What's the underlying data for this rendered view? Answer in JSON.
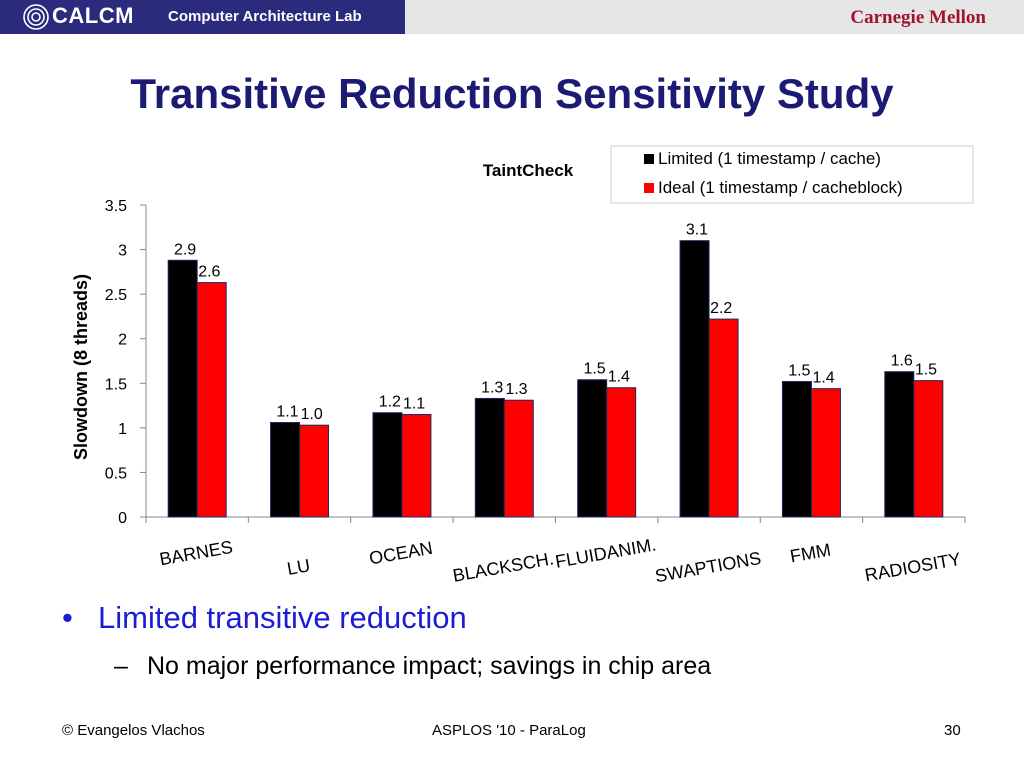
{
  "header": {
    "logo_text": "CALCM",
    "lab_name": "Computer Architecture Lab",
    "university": "Carnegie Mellon"
  },
  "slide": {
    "title": "Transitive Reduction Sensitivity Study"
  },
  "chart_data": {
    "type": "bar",
    "title": "TaintCheck",
    "ylabel": "Slowdown (8 threads)",
    "xlabel": "",
    "ylim": [
      0,
      3.5
    ],
    "yticks": [
      0,
      0.5,
      1,
      1.5,
      2,
      2.5,
      3,
      3.5
    ],
    "ytick_labels": [
      "0",
      "0.5",
      "1",
      "1.5",
      "2",
      "2.5",
      "3",
      "3.5"
    ],
    "grid": false,
    "legend_position": "top-right",
    "categories": [
      "BARNES",
      "LU",
      "OCEAN",
      "BLACKSCH.",
      "FLUIDANIM.",
      "SWAPTIONS",
      "FMM",
      "RADIOSITY"
    ],
    "series": [
      {
        "name": "Limited (1 timestamp / cache)",
        "color": "#000000",
        "values": [
          2.88,
          1.06,
          1.17,
          1.33,
          1.54,
          3.1,
          1.52,
          1.63
        ],
        "labels": [
          "2.9",
          "1.1",
          "1.2",
          "1.3",
          "1.5",
          "3.1",
          "1.5",
          "1.6"
        ]
      },
      {
        "name": "Ideal (1 timestamp / cacheblock)",
        "color": "#ff0000",
        "values": [
          2.63,
          1.03,
          1.15,
          1.31,
          1.45,
          2.22,
          1.44,
          1.53
        ],
        "labels": [
          "2.6",
          "1.0",
          "1.1",
          "1.3",
          "1.4",
          "2.2",
          "1.4",
          "1.5"
        ]
      }
    ]
  },
  "bullets": [
    {
      "text": "Limited transitive reduction",
      "subs": [
        "No major performance impact; savings in chip area"
      ]
    }
  ],
  "footer": {
    "author": "© Evangelos Vlachos",
    "venue": "ASPLOS '10 - ParaLog",
    "page": "30"
  }
}
